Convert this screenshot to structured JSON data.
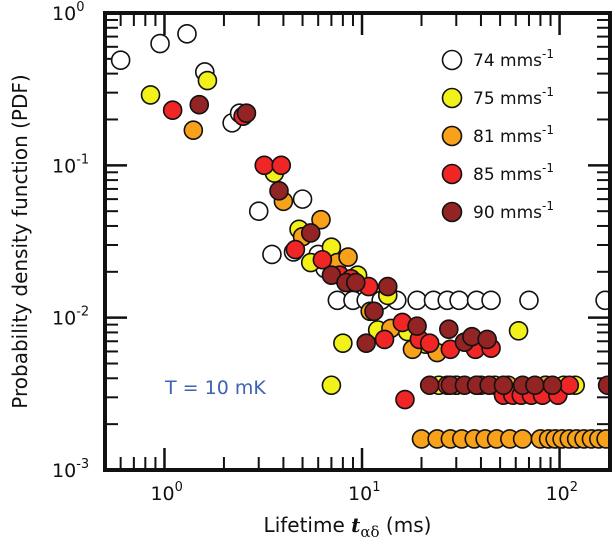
{
  "chart_data": {
    "type": "scatter",
    "xscale": "log",
    "yscale": "log",
    "xlim": [
      0.5,
      180
    ],
    "ylim": [
      0.001,
      1.0
    ],
    "xlabel_text": "Lifetime ",
    "xlabel_symbol": "t",
    "xlabel_sub": "αδ",
    "xlabel_unit": " (ms)",
    "ylabel": "Probability density function (PDF)",
    "x_ticks": [
      {
        "base": "10",
        "exp": "0"
      },
      {
        "base": "10",
        "exp": "1"
      },
      {
        "base": "10",
        "exp": "2"
      }
    ],
    "y_ticks": [
      {
        "base": "10",
        "exp": "0"
      },
      {
        "base": "10",
        "exp": "-1"
      },
      {
        "base": "10",
        "exp": "-2"
      },
      {
        "base": "10",
        "exp": "-3"
      }
    ],
    "annotation": "T = 10 mK",
    "legend_position": "top-right",
    "series": [
      {
        "name": "74 mms",
        "unit_exp": "-1",
        "color": "#ffffff",
        "points": [
          [
            0.6,
            0.49
          ],
          [
            0.95,
            0.63
          ],
          [
            1.3,
            0.73
          ],
          [
            1.6,
            0.41
          ],
          [
            2.2,
            0.19
          ],
          [
            2.4,
            0.22
          ],
          [
            3.0,
            0.05
          ],
          [
            3.5,
            0.026
          ],
          [
            4.5,
            0.027
          ],
          [
            5.0,
            0.06
          ],
          [
            6.0,
            0.026
          ],
          [
            6.5,
            0.021
          ],
          [
            7.5,
            0.013
          ],
          [
            9.0,
            0.013
          ],
          [
            10.5,
            0.013
          ],
          [
            12.5,
            0.013
          ],
          [
            15.0,
            0.013
          ],
          [
            19.0,
            0.013
          ],
          [
            23.0,
            0.013
          ],
          [
            27.0,
            0.013
          ],
          [
            31.0,
            0.013
          ],
          [
            38.0,
            0.013
          ],
          [
            45.0,
            0.013
          ],
          [
            70.0,
            0.013
          ],
          [
            170.0,
            0.013
          ]
        ]
      },
      {
        "name": "75 mms",
        "unit_exp": "-1",
        "color": "#f2f21a",
        "points": [
          [
            0.85,
            0.29
          ],
          [
            1.65,
            0.36
          ],
          [
            3.6,
            0.089
          ],
          [
            4.8,
            0.038
          ],
          [
            5.5,
            0.023
          ],
          [
            7.0,
            0.029
          ],
          [
            8.0,
            0.0068
          ],
          [
            9.5,
            0.019
          ],
          [
            12.0,
            0.0083
          ],
          [
            13.5,
            0.014
          ],
          [
            17.0,
            0.0081
          ],
          [
            21.0,
            0.0067
          ],
          [
            24.5,
            0.0036
          ],
          [
            30.0,
            0.0036
          ],
          [
            38.0,
            0.0036
          ],
          [
            47.0,
            0.0036
          ],
          [
            62.0,
            0.0082
          ],
          [
            85.0,
            0.0036
          ],
          [
            105.0,
            0.0036
          ],
          [
            120.0,
            0.0036
          ],
          [
            7.0,
            0.0036
          ]
        ]
      },
      {
        "name": "81 mms",
        "unit_exp": "-1",
        "color": "#f7a21a",
        "points": [
          [
            1.4,
            0.17
          ],
          [
            4.0,
            0.058
          ],
          [
            5.0,
            0.034
          ],
          [
            6.2,
            0.044
          ],
          [
            7.5,
            0.023
          ],
          [
            8.5,
            0.025
          ],
          [
            11.0,
            0.011
          ],
          [
            14.0,
            0.0085
          ],
          [
            18.0,
            0.0062
          ],
          [
            24.0,
            0.0059
          ],
          [
            30.0,
            0.0036
          ],
          [
            40.0,
            0.0036
          ],
          [
            55.0,
            0.0036
          ],
          [
            85.0,
            0.0036
          ],
          [
            20.0,
            0.0016
          ],
          [
            24.0,
            0.0016
          ],
          [
            28.0,
            0.0016
          ],
          [
            32.0,
            0.0016
          ],
          [
            37.0,
            0.0016
          ],
          [
            42.0,
            0.0016
          ],
          [
            48.0,
            0.0016
          ],
          [
            56.0,
            0.0016
          ],
          [
            65.0,
            0.0016
          ],
          [
            80.0,
            0.0016
          ],
          [
            88.0,
            0.0016
          ],
          [
            95.0,
            0.0016
          ],
          [
            103.0,
            0.0016
          ],
          [
            112.0,
            0.0016
          ],
          [
            122.0,
            0.0016
          ],
          [
            133.0,
            0.0016
          ],
          [
            145.0,
            0.0016
          ],
          [
            158.0,
            0.0016
          ],
          [
            172.0,
            0.0016
          ]
        ]
      },
      {
        "name": "85 mms",
        "unit_exp": "-1",
        "color": "#f02525",
        "points": [
          [
            1.1,
            0.23
          ],
          [
            2.5,
            0.21
          ],
          [
            3.2,
            0.1
          ],
          [
            3.9,
            0.1
          ],
          [
            4.6,
            0.028
          ],
          [
            6.3,
            0.024
          ],
          [
            7.7,
            0.019
          ],
          [
            8.8,
            0.018
          ],
          [
            10.8,
            0.016
          ],
          [
            13.0,
            0.0072
          ],
          [
            16.0,
            0.0093
          ],
          [
            19.5,
            0.0072
          ],
          [
            22.0,
            0.0068
          ],
          [
            28.0,
            0.0062
          ],
          [
            37.5,
            0.0062
          ],
          [
            45.0,
            0.0063
          ],
          [
            16.5,
            0.0029
          ],
          [
            27.0,
            0.0036
          ],
          [
            52.0,
            0.0031
          ],
          [
            58.0,
            0.0031
          ],
          [
            64.0,
            0.0031
          ],
          [
            72.0,
            0.0031
          ],
          [
            82.0,
            0.0031
          ],
          [
            98.0,
            0.0031
          ],
          [
            112.0,
            0.0036
          ]
        ]
      },
      {
        "name": "90 mms",
        "unit_exp": "-1",
        "color": "#932424",
        "points": [
          [
            1.5,
            0.25
          ],
          [
            2.6,
            0.22
          ],
          [
            3.8,
            0.068
          ],
          [
            5.5,
            0.036
          ],
          [
            7.0,
            0.019
          ],
          [
            8.3,
            0.017
          ],
          [
            9.3,
            0.017
          ],
          [
            10.5,
            0.0068
          ],
          [
            11.5,
            0.011
          ],
          [
            13.5,
            0.016
          ],
          [
            19.0,
            0.0088
          ],
          [
            27.5,
            0.0084
          ],
          [
            33.0,
            0.0069
          ],
          [
            36.0,
            0.0075
          ],
          [
            43.0,
            0.0072
          ],
          [
            22.0,
            0.0036
          ],
          [
            28.0,
            0.0036
          ],
          [
            33.0,
            0.0036
          ],
          [
            38.0,
            0.0036
          ],
          [
            44.0,
            0.0036
          ],
          [
            52.0,
            0.0036
          ],
          [
            65.0,
            0.0036
          ],
          [
            75.0,
            0.0036
          ],
          [
            92.0,
            0.0036
          ],
          [
            175.0,
            0.0036
          ]
        ]
      }
    ]
  }
}
